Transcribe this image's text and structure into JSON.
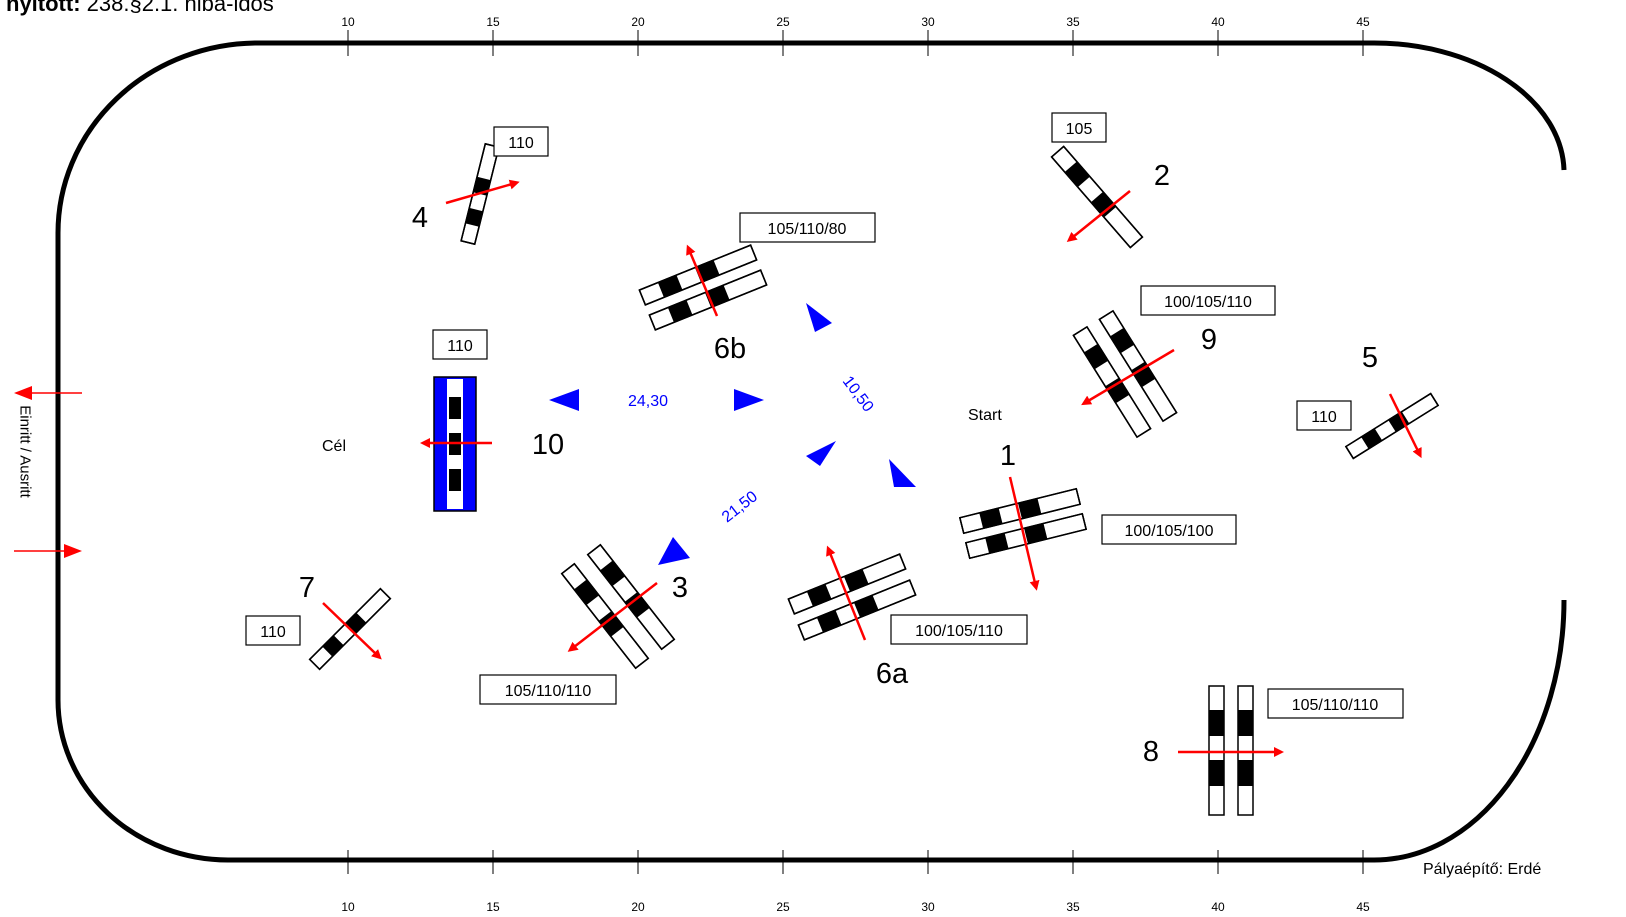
{
  "title": {
    "prefix": "nyitott:",
    "text": "238.§2.1. hiba-idős"
  },
  "designer": "Pályaépítő: Erdé",
  "entry_exit": "Einritt / Ausritt",
  "ruler_labels": [
    "10",
    "15",
    "20",
    "25",
    "30",
    "35",
    "40",
    "45"
  ],
  "start_label": "Start",
  "finish_label": "Cél",
  "distances": [
    "24,30",
    "10,50",
    "21,50"
  ],
  "obstacles": [
    {
      "number": "1",
      "heights": "100/105/100"
    },
    {
      "number": "2",
      "heights": "105"
    },
    {
      "number": "3",
      "heights": "105/110/110"
    },
    {
      "number": "4",
      "heights": "110"
    },
    {
      "number": "5",
      "heights": "110"
    },
    {
      "number": "6a",
      "heights": "100/105/110"
    },
    {
      "number": "6b",
      "heights": "105/110/80"
    },
    {
      "number": "7",
      "heights": "110"
    },
    {
      "number": "8",
      "heights": "105/110/110"
    },
    {
      "number": "9",
      "heights": "100/105/110"
    },
    {
      "number": "10",
      "heights": "110"
    }
  ],
  "colors": {
    "arena": "#000000",
    "arrow": "#ff0000",
    "distance": "#0000ff"
  }
}
